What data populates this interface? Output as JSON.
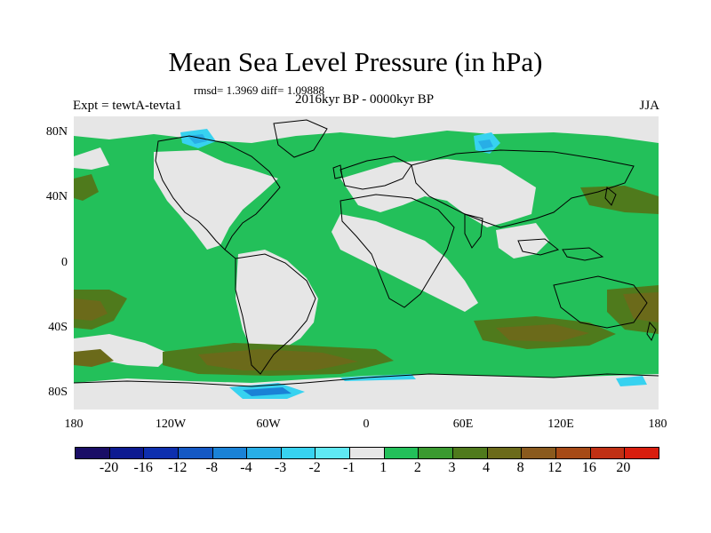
{
  "title": "Mean Sea Level Pressure (in hPa)",
  "stats": "rmsd= 1.3969 diff= 1.09888",
  "period": "2016kyr BP - 0000kyr BP",
  "experiment": "Expt = tewtA-tevta1",
  "season": "JJA",
  "lat_labels": [
    "80N",
    "40N",
    "0",
    "40S",
    "80S"
  ],
  "lon_labels": [
    "180",
    "120W",
    "60W",
    "0",
    "60E",
    "120E",
    "180"
  ],
  "colorbar": {
    "colors": [
      "#1a0e66",
      "#0d1a90",
      "#0e2fae",
      "#1458c4",
      "#1a82d6",
      "#28aee6",
      "#37d2f0",
      "#5fe9f4",
      "#e6e6e6",
      "#23c05a",
      "#3a9a30",
      "#4f7a1c",
      "#6b6a1a",
      "#8a5a1e",
      "#a64a16",
      "#c03014",
      "#d81e0e"
    ],
    "labels": [
      "-20",
      "-16",
      "-12",
      "-8",
      "-4",
      "-3",
      "-2",
      "-1",
      "1",
      "2",
      "3",
      "4",
      "8",
      "12",
      "16",
      "20"
    ]
  },
  "colors": {
    "neutral": "#e6e6e6",
    "green": "#23c05a",
    "dark_green": "#4f7a1c",
    "brown": "#6b6a1a",
    "red_brown": "#8a5a1e",
    "light_blue": "#37d2f0",
    "blue": "#1a82d6"
  }
}
